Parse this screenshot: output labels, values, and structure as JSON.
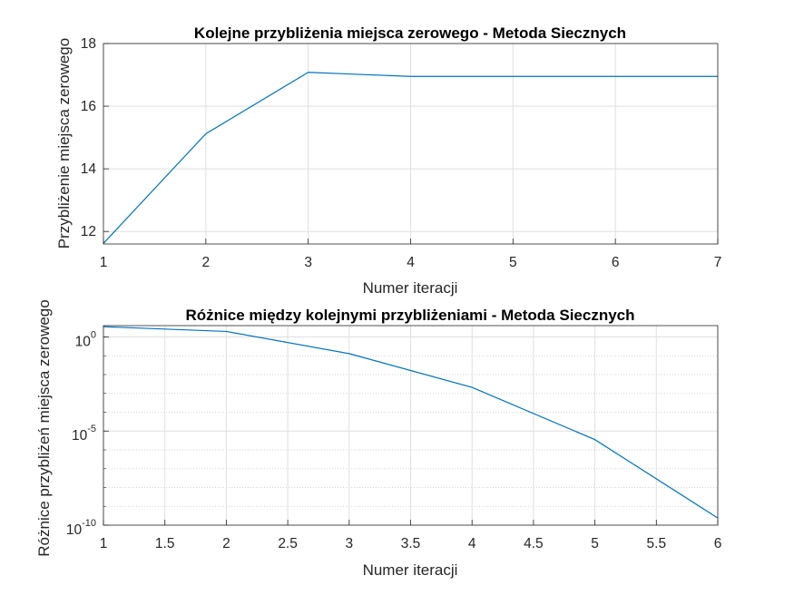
{
  "chart_data": [
    {
      "type": "line",
      "title": "Kolejne przybliżenia miejsca zerowego - Metoda Siecznych",
      "xlabel": "Numer iteracji",
      "ylabel": "Przybliżenie miejsca zerowego",
      "xlim": [
        1,
        7
      ],
      "ylim": [
        11.6,
        18
      ],
      "xticks": [
        "1",
        "2",
        "3",
        "4",
        "5",
        "6",
        "7"
      ],
      "yticks": [
        "12",
        "14",
        "16",
        "18"
      ],
      "ytick_values": [
        12,
        14,
        16,
        18
      ],
      "grid": true,
      "line_color": "#0072BD",
      "x": [
        1,
        2,
        3,
        4,
        5,
        6,
        7
      ],
      "y": [
        11.62,
        15.12,
        17.08,
        16.95,
        16.95,
        16.95,
        16.95
      ]
    },
    {
      "type": "line",
      "title": "Różnice między kolejnymi przybliżeniami - Metoda Siecznych",
      "xlabel": "Numer iteracji",
      "ylabel": "Różnice przybliżeń miejsca zerowego",
      "xlim": [
        1,
        6
      ],
      "ylim": [
        1e-10,
        4
      ],
      "yscale": "log",
      "xticks": [
        "1",
        "1.5",
        "2",
        "2.5",
        "3",
        "3.5",
        "4",
        "4.5",
        "5",
        "5.5",
        "6"
      ],
      "yticks": [
        "10",
        "10",
        "10"
      ],
      "ytick_exponents": [
        "0",
        "-5",
        "-10"
      ],
      "ytick_values": [
        1,
        1e-05,
        1e-10
      ],
      "grid": true,
      "minor_grid": true,
      "line_color": "#0072BD",
      "x": [
        1,
        2,
        3,
        4,
        5,
        6
      ],
      "y": [
        3.5,
        1.96,
        0.13,
        0.0021,
        3.5e-06,
        2.4e-10
      ]
    }
  ]
}
